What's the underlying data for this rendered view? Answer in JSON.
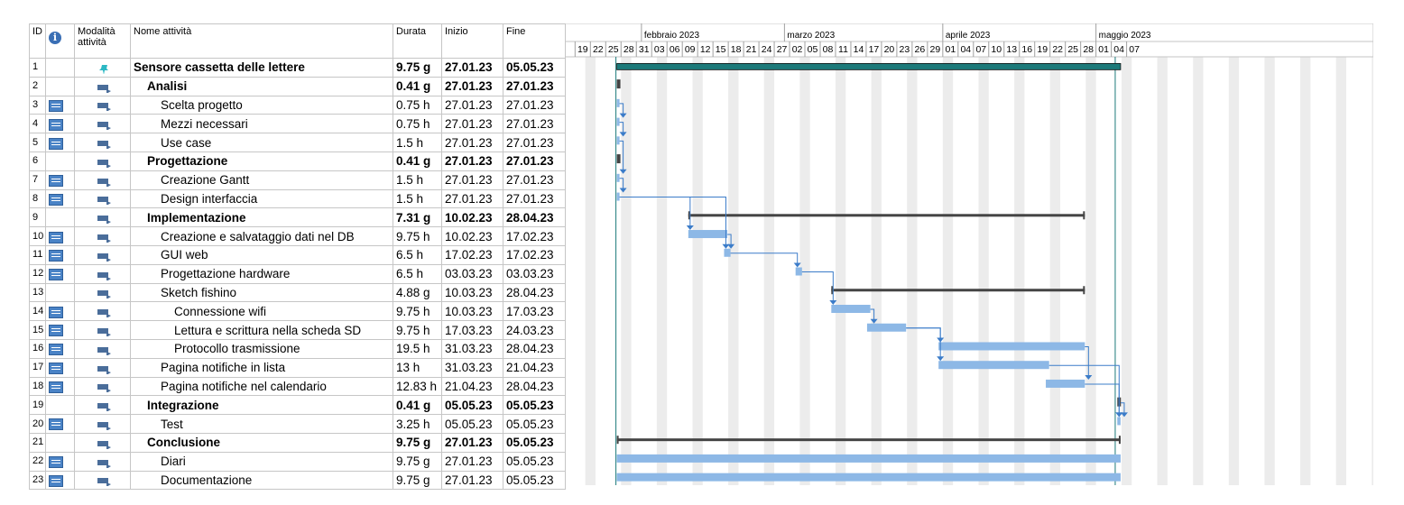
{
  "table": {
    "headers": {
      "id": "ID",
      "info": "i",
      "mode": "Modalità attività",
      "name": "Nome attività",
      "duration": "Durata",
      "start": "Inizio",
      "end": "Fine"
    },
    "rows": [
      {
        "id": "1",
        "name": "Sensore cassetta delle lettere",
        "duration": "9.75 g",
        "start": "27.01.23",
        "end": "05.05.23",
        "level": 0,
        "summary": true,
        "indicator": false,
        "mode": "manual-pin-icon"
      },
      {
        "id": "2",
        "name": "Analisi",
        "duration": "0.41 g",
        "start": "27.01.23",
        "end": "27.01.23",
        "level": 1,
        "summary": true,
        "indicator": false,
        "mode": "auto-schedule-icon"
      },
      {
        "id": "3",
        "name": "Scelta progetto",
        "duration": "0.75 h",
        "start": "27.01.23",
        "end": "27.01.23",
        "level": 2,
        "summary": false,
        "indicator": true,
        "mode": "auto-schedule-icon"
      },
      {
        "id": "4",
        "name": "Mezzi necessari",
        "duration": "0.75 h",
        "start": "27.01.23",
        "end": "27.01.23",
        "level": 2,
        "summary": false,
        "indicator": true,
        "mode": "auto-schedule-icon"
      },
      {
        "id": "5",
        "name": "Use case",
        "duration": "1.5 h",
        "start": "27.01.23",
        "end": "27.01.23",
        "level": 2,
        "summary": false,
        "indicator": true,
        "mode": "auto-schedule-icon"
      },
      {
        "id": "6",
        "name": "Progettazione",
        "duration": "0.41 g",
        "start": "27.01.23",
        "end": "27.01.23",
        "level": 1,
        "summary": true,
        "indicator": false,
        "mode": "auto-schedule-icon"
      },
      {
        "id": "7",
        "name": "Creazione Gantt",
        "duration": "1.5 h",
        "start": "27.01.23",
        "end": "27.01.23",
        "level": 2,
        "summary": false,
        "indicator": true,
        "mode": "auto-schedule-icon"
      },
      {
        "id": "8",
        "name": "Design interfaccia",
        "duration": "1.5 h",
        "start": "27.01.23",
        "end": "27.01.23",
        "level": 2,
        "summary": false,
        "indicator": true,
        "mode": "auto-schedule-icon"
      },
      {
        "id": "9",
        "name": "Implementazione",
        "duration": "7.31 g",
        "start": "10.02.23",
        "end": "28.04.23",
        "level": 1,
        "summary": true,
        "indicator": false,
        "mode": "auto-schedule-icon"
      },
      {
        "id": "10",
        "name": "Creazione e salvataggio dati nel DB",
        "duration": "9.75 h",
        "start": "10.02.23",
        "end": "17.02.23",
        "level": 2,
        "summary": false,
        "indicator": true,
        "mode": "auto-schedule-icon"
      },
      {
        "id": "11",
        "name": "GUI web",
        "duration": "6.5 h",
        "start": "17.02.23",
        "end": "17.02.23",
        "level": 2,
        "summary": false,
        "indicator": true,
        "mode": "auto-schedule-icon"
      },
      {
        "id": "12",
        "name": "Progettazione hardware",
        "duration": "6.5 h",
        "start": "03.03.23",
        "end": "03.03.23",
        "level": 2,
        "summary": false,
        "indicator": true,
        "mode": "auto-schedule-icon"
      },
      {
        "id": "13",
        "name": "Sketch fishino",
        "duration": "4.88 g",
        "start": "10.03.23",
        "end": "28.04.23",
        "level": 2,
        "summary": false,
        "indicator": false,
        "mode": "auto-schedule-icon"
      },
      {
        "id": "14",
        "name": "Connessione wifi",
        "duration": "9.75 h",
        "start": "10.03.23",
        "end": "17.03.23",
        "level": 3,
        "summary": false,
        "indicator": true,
        "mode": "auto-schedule-icon"
      },
      {
        "id": "15",
        "name": "Lettura e scrittura nella scheda SD",
        "duration": "9.75 h",
        "start": "17.03.23",
        "end": "24.03.23",
        "level": 3,
        "summary": false,
        "indicator": true,
        "mode": "auto-schedule-icon"
      },
      {
        "id": "16",
        "name": "Protocollo trasmissione",
        "duration": "19.5 h",
        "start": "31.03.23",
        "end": "28.04.23",
        "level": 3,
        "summary": false,
        "indicator": true,
        "mode": "auto-schedule-icon"
      },
      {
        "id": "17",
        "name": "Pagina notifiche in lista",
        "duration": "13 h",
        "start": "31.03.23",
        "end": "21.04.23",
        "level": 2,
        "summary": false,
        "indicator": true,
        "mode": "auto-schedule-icon"
      },
      {
        "id": "18",
        "name": "Pagina notifiche nel calendario",
        "duration": "12.83 h",
        "start": "21.04.23",
        "end": "28.04.23",
        "level": 2,
        "summary": false,
        "indicator": true,
        "mode": "auto-schedule-icon"
      },
      {
        "id": "19",
        "name": "Integrazione",
        "duration": "0.41 g",
        "start": "05.05.23",
        "end": "05.05.23",
        "level": 1,
        "summary": true,
        "indicator": false,
        "mode": "auto-schedule-icon"
      },
      {
        "id": "20",
        "name": "Test",
        "duration": "3.25 h",
        "start": "05.05.23",
        "end": "05.05.23",
        "level": 2,
        "summary": false,
        "indicator": true,
        "mode": "auto-schedule-icon"
      },
      {
        "id": "21",
        "name": "Conclusione",
        "duration": "9.75 g",
        "start": "27.01.23",
        "end": "05.05.23",
        "level": 1,
        "summary": true,
        "indicator": false,
        "mode": "auto-schedule-icon"
      },
      {
        "id": "22",
        "name": "Diari",
        "duration": "9.75 g",
        "start": "27.01.23",
        "end": "05.05.23",
        "level": 2,
        "summary": false,
        "indicator": true,
        "mode": "auto-schedule-icon"
      },
      {
        "id": "23",
        "name": "Documentazione",
        "duration": "9.75 g",
        "start": "27.01.23",
        "end": "05.05.23",
        "level": 2,
        "summary": false,
        "indicator": true,
        "mode": "auto-schedule-icon"
      }
    ]
  },
  "timescale": {
    "months": [
      {
        "label": "febbraio 2023",
        "date": "2023-02-01"
      },
      {
        "label": "marzo 2023",
        "date": "2023-03-01"
      },
      {
        "label": "aprile 2023",
        "date": "2023-04-01"
      },
      {
        "label": "maggio 2023",
        "date": "2023-05-01"
      }
    ],
    "days": [
      {
        "label": "19",
        "date": "2023-01-19"
      },
      {
        "label": "22",
        "date": "2023-01-22"
      },
      {
        "label": "25",
        "date": "2023-01-25"
      },
      {
        "label": "28",
        "date": "2023-01-28"
      },
      {
        "label": "31",
        "date": "2023-01-31"
      },
      {
        "label": "03",
        "date": "2023-02-03"
      },
      {
        "label": "06",
        "date": "2023-02-06"
      },
      {
        "label": "09",
        "date": "2023-02-09"
      },
      {
        "label": "12",
        "date": "2023-02-12"
      },
      {
        "label": "15",
        "date": "2023-02-15"
      },
      {
        "label": "18",
        "date": "2023-02-18"
      },
      {
        "label": "21",
        "date": "2023-02-21"
      },
      {
        "label": "24",
        "date": "2023-02-24"
      },
      {
        "label": "27",
        "date": "2023-02-27"
      },
      {
        "label": "02",
        "date": "2023-03-02"
      },
      {
        "label": "05",
        "date": "2023-03-05"
      },
      {
        "label": "08",
        "date": "2023-03-08"
      },
      {
        "label": "11",
        "date": "2023-03-11"
      },
      {
        "label": "14",
        "date": "2023-03-14"
      },
      {
        "label": "17",
        "date": "2023-03-17"
      },
      {
        "label": "20",
        "date": "2023-03-20"
      },
      {
        "label": "23",
        "date": "2023-03-23"
      },
      {
        "label": "26",
        "date": "2023-03-26"
      },
      {
        "label": "29",
        "date": "2023-03-29"
      },
      {
        "label": "01",
        "date": "2023-04-01"
      },
      {
        "label": "04",
        "date": "2023-04-04"
      },
      {
        "label": "07",
        "date": "2023-04-07"
      },
      {
        "label": "10",
        "date": "2023-04-10"
      },
      {
        "label": "13",
        "date": "2023-04-13"
      },
      {
        "label": "16",
        "date": "2023-04-16"
      },
      {
        "label": "19",
        "date": "2023-04-19"
      },
      {
        "label": "22",
        "date": "2023-04-22"
      },
      {
        "label": "25",
        "date": "2023-04-25"
      },
      {
        "label": "28",
        "date": "2023-04-28"
      },
      {
        "label": "01",
        "date": "2023-05-01"
      },
      {
        "label": "04",
        "date": "2023-05-04"
      },
      {
        "label": "07",
        "date": "2023-05-07"
      }
    ]
  },
  "colors": {
    "task_bar": "#8db8e6",
    "summary_bar": "#444444",
    "project_summary_bar": "#1c7a7a",
    "link_line": "#3b7cc9",
    "weekend_shade": "#ececec",
    "grid_border": "#c6c6c6"
  }
}
